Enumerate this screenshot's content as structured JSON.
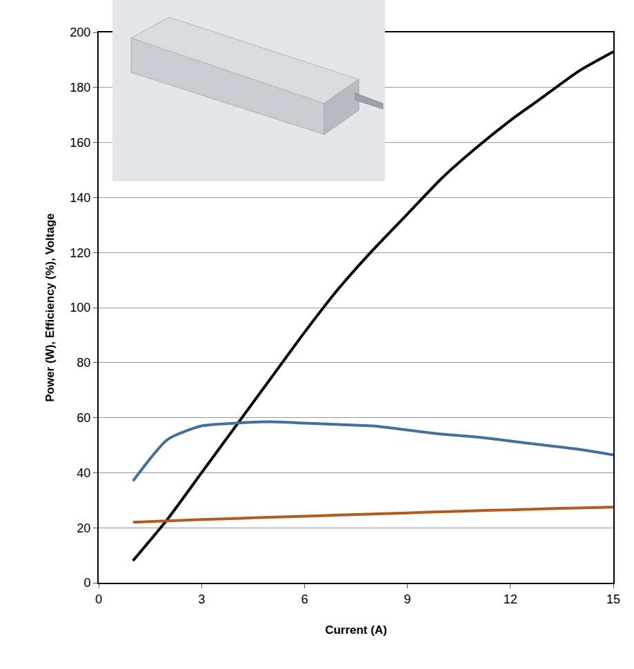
{
  "chart_data": {
    "type": "line",
    "x_label": "Current (A)",
    "y_label": "Power (W), Efficiency (%), Voltage",
    "x": [
      1,
      2,
      3,
      4,
      5,
      6,
      7,
      8,
      9,
      10,
      11,
      12,
      13,
      14,
      15
    ],
    "series": [
      {
        "color": "#000000",
        "values": [
          8,
          23,
          40,
          57,
          74,
          91,
          107,
          121,
          134,
          147,
          158,
          168,
          177,
          186,
          193
        ]
      },
      {
        "color": "#41709f",
        "values": [
          37,
          52,
          57,
          58,
          58.5,
          58,
          57.5,
          57,
          55.5,
          54,
          53,
          51.5,
          50,
          48.5,
          46.5
        ]
      },
      {
        "color": "#b35a1f",
        "values": [
          22,
          22.5,
          23,
          23.4,
          23.8,
          24.2,
          24.6,
          25,
          25.4,
          25.8,
          26.2,
          26.5,
          26.9,
          27.2,
          27.5
        ]
      }
    ],
    "xlim": [
      0,
      15
    ],
    "xticks": [
      0,
      3,
      6,
      9,
      12,
      15
    ],
    "ylim": [
      0,
      200
    ],
    "yticks": [
      0,
      20,
      40,
      60,
      80,
      100,
      120,
      140,
      160,
      180,
      200
    ],
    "grid": "y"
  }
}
